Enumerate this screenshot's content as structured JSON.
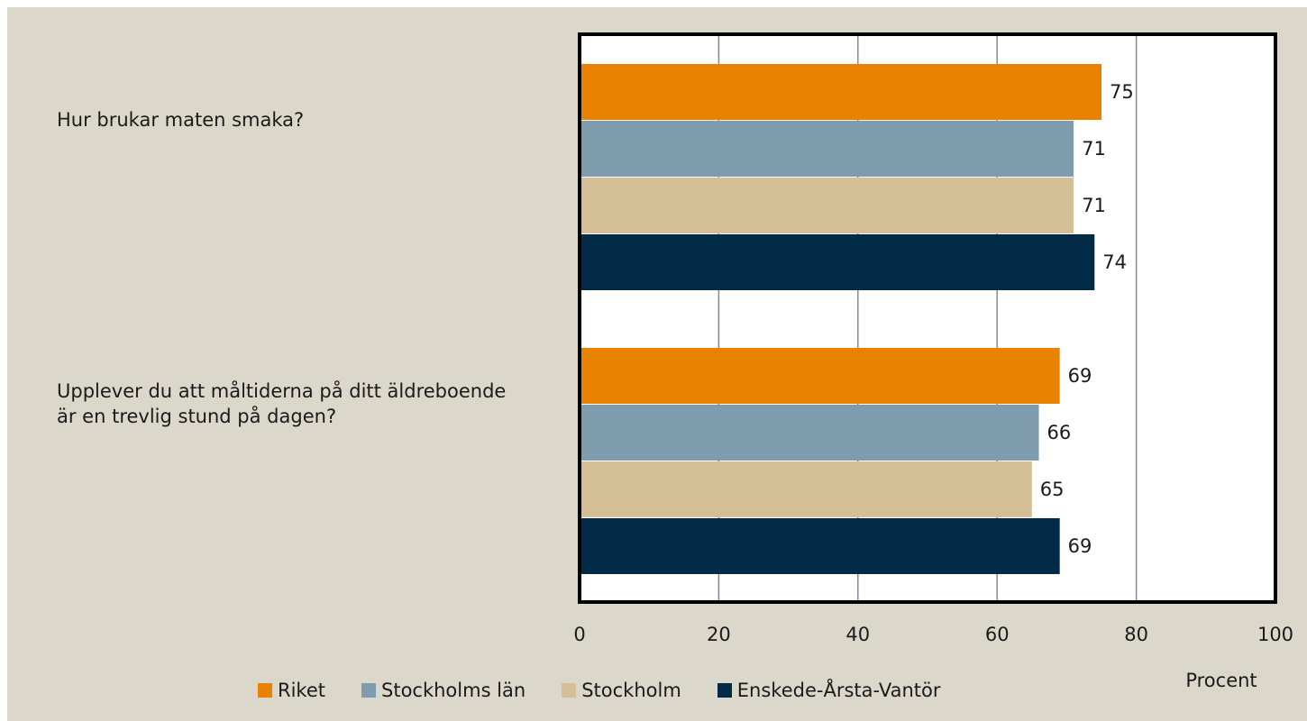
{
  "chart_data": {
    "type": "bar",
    "orientation": "horizontal",
    "categories": [
      "Hur brukar maten smaka?",
      "Upplever du att måltiderna på ditt äldreboende är en trevlig stund på dagen?"
    ],
    "series": [
      {
        "name": "Riket",
        "color": "#e88200",
        "values": [
          75,
          69
        ]
      },
      {
        "name": "Stockholms län",
        "color": "#7f9bae",
        "values": [
          71,
          66
        ]
      },
      {
        "name": "Stockholm",
        "color": "#d4bf96",
        "values": [
          71,
          65
        ]
      },
      {
        "name": "Enskede-Årsta-Vantör",
        "color": "#002a45",
        "values": [
          74,
          69
        ]
      }
    ],
    "xlabel": "Procent",
    "xlim": [
      0,
      100
    ],
    "xticks": [
      0,
      20,
      40,
      60,
      80,
      100
    ],
    "grid": true
  }
}
